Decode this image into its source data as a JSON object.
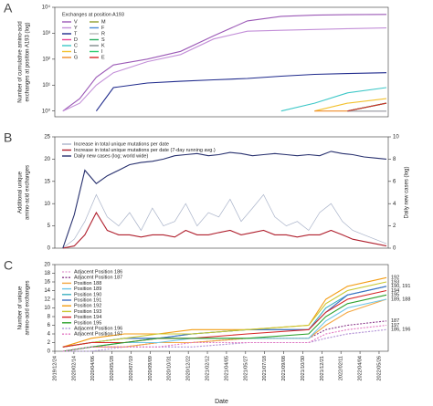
{
  "chart_data": [
    {
      "type": "line",
      "label": "A",
      "log": true,
      "legend": "upper left",
      "legend_title": "Exchanges at position A193",
      "ylabel": [
        "Number of cumulative amino-acid",
        "exchanges at position A193 (log)"
      ],
      "xlim": [
        "2019/12/24",
        "2022/06/20"
      ],
      "ylim": [
        0.6,
        10000
      ],
      "yticks": [
        {
          "value": 1,
          "label": "10⁰"
        },
        {
          "value": 10,
          "label": "10¹"
        },
        {
          "value": 100,
          "label": "10²"
        },
        {
          "value": 1000,
          "label": "10³"
        },
        {
          "value": 10000,
          "label": "10⁴"
        }
      ],
      "x": [
        "2020/01/15",
        "2020/03/01",
        "2020/04/15",
        "2020/06/01",
        "2020/09/01",
        "2020/12/01",
        "2021/03/01",
        "2021/06/01",
        "2021/09/01",
        "2021/12/01",
        "2022/03/01",
        "2022/06/15"
      ],
      "series": [
        {
          "name": "V",
          "color": "#9b59b6",
          "values": [
            1,
            3,
            20,
            60,
            100,
            200,
            800,
            3000,
            4500,
            5000,
            5200,
            5300
          ]
        },
        {
          "name": "Y",
          "color": "#c38fd8",
          "values": [
            1,
            2,
            10,
            30,
            80,
            150,
            600,
            1200,
            1300,
            1400,
            1500,
            1600
          ]
        },
        {
          "name": "T",
          "color": "#1f2a8c",
          "values": [
            null,
            null,
            1,
            8,
            12,
            14,
            16,
            18,
            22,
            26,
            28,
            30
          ]
        },
        {
          "name": "D",
          "color": "#e84393",
          "values": [
            null,
            null,
            null,
            null,
            null,
            null,
            null,
            null,
            null,
            null,
            1,
            1
          ]
        },
        {
          "name": "C",
          "color": "#3cc7c7",
          "values": [
            null,
            null,
            null,
            null,
            null,
            null,
            null,
            null,
            1,
            2,
            5,
            8
          ]
        },
        {
          "name": "L",
          "color": "#f2c12e",
          "values": [
            null,
            null,
            null,
            null,
            null,
            null,
            null,
            null,
            null,
            1,
            2,
            3
          ]
        },
        {
          "name": "G",
          "color": "#f08c28",
          "values": [
            null,
            null,
            null,
            null,
            null,
            null,
            null,
            null,
            null,
            1,
            1,
            1
          ]
        },
        {
          "name": "M",
          "color": "#8e9e2e",
          "values": [
            null,
            null,
            null,
            null,
            null,
            null,
            null,
            null,
            null,
            null,
            1,
            2
          ]
        },
        {
          "name": "F",
          "color": "#4a8ad4",
          "values": [
            null,
            null,
            null,
            null,
            null,
            null,
            null,
            null,
            null,
            null,
            1,
            1
          ]
        },
        {
          "name": "R",
          "color": "#b8b8b8",
          "values": [
            null,
            null,
            null,
            null,
            null,
            null,
            null,
            null,
            null,
            null,
            1,
            1
          ]
        },
        {
          "name": "S",
          "color": "#27ae60",
          "values": [
            null,
            null,
            null,
            null,
            null,
            null,
            null,
            null,
            null,
            null,
            1,
            2
          ]
        },
        {
          "name": "K",
          "color": "#7f8c8d",
          "values": [
            null,
            null,
            null,
            null,
            null,
            null,
            null,
            null,
            null,
            null,
            null,
            1
          ]
        },
        {
          "name": "I",
          "color": "#2ecc71",
          "values": [
            null,
            null,
            null,
            null,
            null,
            null,
            null,
            null,
            null,
            null,
            1,
            2
          ]
        },
        {
          "name": "E",
          "color": "#d62728",
          "values": [
            null,
            null,
            null,
            null,
            null,
            null,
            null,
            null,
            null,
            null,
            1,
            2
          ]
        }
      ]
    },
    {
      "type": "line",
      "label": "B",
      "legend": "upper left",
      "ylabel": [
        "Additional unique",
        "amino-acid exchanges"
      ],
      "y2label": "Daily new cases (log)",
      "xlim": [
        "2019/12/24",
        "2022/06/20"
      ],
      "ylim": [
        0,
        25
      ],
      "yticks": [
        0,
        5,
        10,
        15,
        20,
        25
      ],
      "y2lim": [
        0,
        10
      ],
      "y2ticks": [
        0,
        2,
        4,
        6,
        8,
        10
      ],
      "x": [
        "2020/01/15",
        "2020/02/15",
        "2020/03/15",
        "2020/04/15",
        "2020/05/15",
        "2020/06/15",
        "2020/07/15",
        "2020/08/15",
        "2020/09/15",
        "2020/10/15",
        "2020/11/15",
        "2020/12/15",
        "2021/01/15",
        "2021/02/15",
        "2021/03/15",
        "2021/04/15",
        "2021/05/15",
        "2021/06/15",
        "2021/07/15",
        "2021/08/15",
        "2021/09/15",
        "2021/10/15",
        "2021/11/15",
        "2021/12/15",
        "2022/01/15",
        "2022/02/15",
        "2022/03/15",
        "2022/04/15",
        "2022/05/15",
        "2022/06/15"
      ],
      "series": [
        {
          "name": "Increase in total unique mutations per date",
          "color": "#a9b3c9",
          "values": [
            0,
            2,
            6,
            12,
            7,
            5,
            8,
            4,
            9,
            5,
            6,
            10,
            5,
            8,
            7,
            11,
            6,
            9,
            12,
            7,
            5,
            6,
            4,
            8,
            10,
            6,
            4,
            3,
            2,
            1
          ]
        },
        {
          "name": "Increase in total unique mutations per date (7-day running avg.)",
          "color": "#b0202e",
          "values": [
            0,
            0.5,
            3,
            8,
            4,
            3,
            3,
            2.5,
            3,
            3,
            2.5,
            4,
            3,
            3,
            3.5,
            4,
            3,
            3.5,
            4,
            3,
            3,
            2.5,
            3,
            3,
            4,
            3,
            2,
            1.5,
            1,
            0.5
          ]
        },
        {
          "name": "Daily new cases (log; world wide)",
          "color": "#27306e",
          "axis": "y2",
          "values": [
            0,
            3,
            7,
            5.8,
            6.5,
            7,
            7.5,
            7.7,
            7.8,
            8,
            8.3,
            8.4,
            8.5,
            8.3,
            8.4,
            8.6,
            8.5,
            8.3,
            8.4,
            8.5,
            8.4,
            8.3,
            8.4,
            8.3,
            8.7,
            8.5,
            8.4,
            8.2,
            8.1,
            8
          ]
        }
      ]
    },
    {
      "type": "line",
      "label": "C",
      "legend": "upper left",
      "ylabel": [
        "Number of unique",
        "amino-acid exchanges"
      ],
      "xlabel": "Date",
      "xlim": [
        "2019/12/24",
        "2022/06/20"
      ],
      "ylim": [
        0,
        20
      ],
      "yticks": [
        0,
        2,
        4,
        6,
        8,
        10,
        12,
        14,
        16,
        18,
        20
      ],
      "xticks": [
        "2019/12/24",
        "2020/02/14",
        "2020/04/06",
        "2020/05/28",
        "2020/07/19",
        "2020/09/09",
        "2020/10/31",
        "2020/12/22",
        "2021/02/12",
        "2021/04/05",
        "2021/05/27",
        "2021/07/18",
        "2021/09/08",
        "2021/10/30",
        "2021/12/21",
        "2022/02/11",
        "2022/04/04",
        "2022/05/26"
      ],
      "x": [
        "2020/01/15",
        "2020/04/01",
        "2020/07/01",
        "2020/10/01",
        "2021/01/01",
        "2021/06/01",
        "2021/11/15",
        "2022/01/01",
        "2022/03/01",
        "2022/06/15"
      ],
      "series": [
        {
          "name": "Adjacent Position 186",
          "color": "#e6a8d7",
          "dash": true,
          "end_label": "186, 196",
          "values": [
            0,
            1,
            1,
            1,
            1,
            2,
            2,
            3,
            4,
            5
          ]
        },
        {
          "name": "Adjacent Position 187",
          "color": "#8b3a8b",
          "dash": true,
          "end_label": "187",
          "values": [
            0,
            1,
            1,
            2,
            2,
            3,
            3,
            5,
            6,
            7
          ]
        },
        {
          "name": "Position 188",
          "color": "#f4a742",
          "values": [
            0,
            1,
            1,
            2,
            2,
            3,
            3,
            6,
            9,
            12
          ]
        },
        {
          "name": "Position 189",
          "color": "#6fc5e8",
          "end_label": "189, 188",
          "values": [
            0,
            1,
            2,
            2,
            3,
            3,
            3,
            7,
            10,
            12
          ]
        },
        {
          "name": "Position 190",
          "color": "#3cb0c0",
          "end_label": "190, 191",
          "values": [
            1,
            2,
            3,
            3,
            4,
            5,
            5,
            10,
            13,
            15
          ]
        },
        {
          "name": "Position 191",
          "color": "#3e6fc4",
          "values": [
            1,
            2,
            3,
            3,
            4,
            5,
            5,
            9,
            13,
            15
          ]
        },
        {
          "name": "Position 192",
          "color": "#f39c12",
          "end_label": "192",
          "values": [
            1,
            3,
            4,
            4,
            5,
            5,
            6,
            12,
            15,
            17
          ]
        },
        {
          "name": "Position 193",
          "color": "#c8c832",
          "end_label": "193",
          "values": [
            1,
            2,
            3,
            4,
            4,
            5,
            6,
            11,
            14,
            16
          ]
        },
        {
          "name": "Position 194",
          "color": "#d62728",
          "end_label": "194",
          "values": [
            1,
            2,
            2,
            3,
            3,
            4,
            5,
            9,
            12,
            14
          ]
        },
        {
          "name": "Position 195",
          "color": "#2ca02c",
          "end_label": "195",
          "values": [
            0,
            1,
            2,
            3,
            3,
            3,
            4,
            8,
            11,
            13
          ]
        },
        {
          "name": "Adjacent Position 196",
          "color": "#b39ddb",
          "dash": true,
          "values": [
            0,
            0,
            1,
            1,
            1,
            2,
            2,
            3,
            4,
            5
          ]
        },
        {
          "name": "Adjacent Position 197",
          "color": "#e377c2",
          "dash": true,
          "end_label": "197",
          "values": [
            0,
            1,
            1,
            1,
            2,
            2,
            2,
            4,
            5,
            6
          ]
        }
      ]
    }
  ]
}
